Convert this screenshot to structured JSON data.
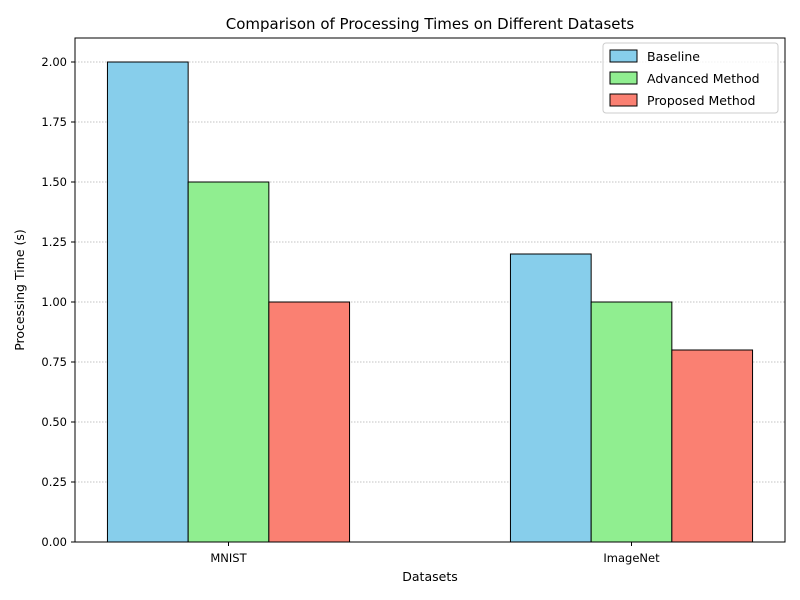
{
  "chart_data": {
    "type": "bar",
    "title": "Comparison of Processing Times on Different Datasets",
    "xlabel": "Datasets",
    "ylabel": "Processing Time (s)",
    "categories": [
      "MNIST",
      "ImageNet"
    ],
    "series": [
      {
        "name": "Baseline",
        "values": [
          2.0,
          1.2
        ],
        "color": "#87ceeb"
      },
      {
        "name": "Advanced Method",
        "values": [
          1.5,
          1.0
        ],
        "color": "#90ee90"
      },
      {
        "name": "Proposed Method",
        "values": [
          1.0,
          0.8
        ],
        "color": "#fa8072"
      }
    ],
    "ylim": [
      0,
      2.1
    ],
    "yticks": [
      0.0,
      0.25,
      0.5,
      0.75,
      1.0,
      1.25,
      1.5,
      1.75,
      2.0
    ],
    "ytick_labels": [
      "0.00",
      "0.25",
      "0.50",
      "0.75",
      "1.00",
      "1.25",
      "1.50",
      "1.75",
      "2.00"
    ],
    "grid": "y-dotted",
    "legend_position": "top-right",
    "edge_color": "#000000",
    "grid_color": "#b0b0b0"
  }
}
